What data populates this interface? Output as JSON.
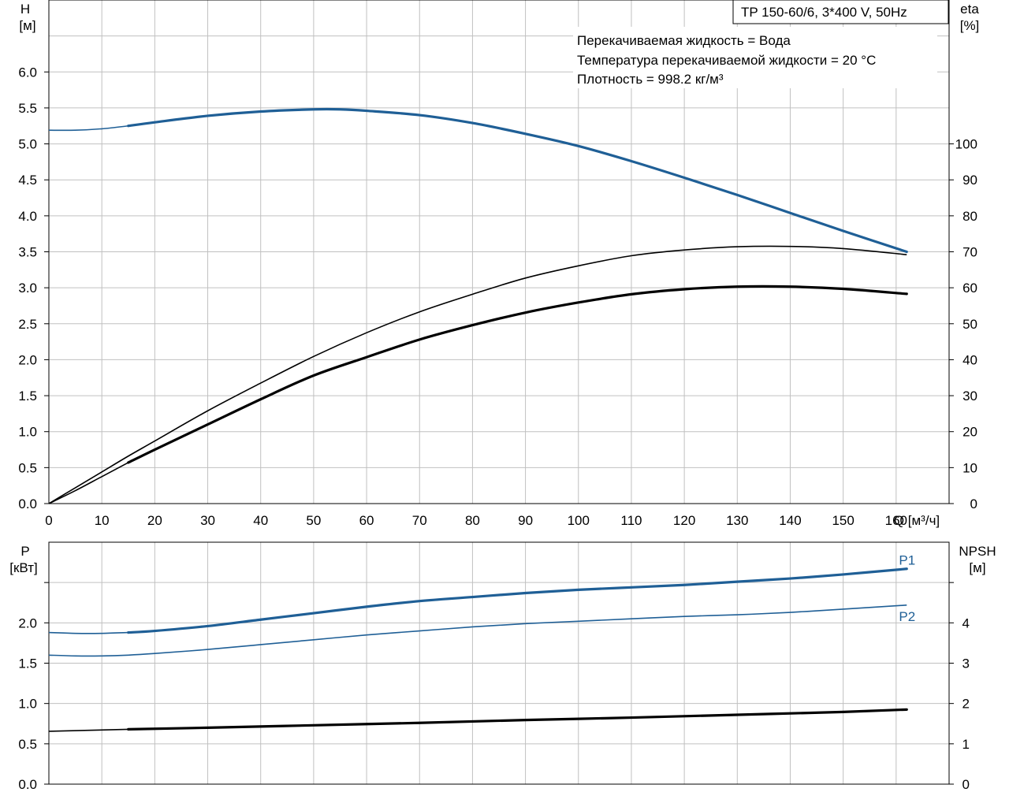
{
  "colors": {
    "blue": "#1f5f96",
    "black": "#000000",
    "grid": "#c0c0c0"
  },
  "title_box": "TP 150-60/6, 3*400 V, 50Hz",
  "info_lines": [
    "Перекачиваемая жидкость = Вода",
    "Температура перекачиваемой жидкости = 20 °C",
    "Плотность = 998.2 кг/м³"
  ],
  "axes": {
    "top_left_label": [
      "H",
      "[м]"
    ],
    "top_right_label": [
      "eta",
      "[%]"
    ],
    "x_label": "Q [м³/ч]",
    "bottom_left_label": [
      "P",
      "[кВт]"
    ],
    "bottom_right_label": [
      "NPSH",
      "[м]"
    ]
  },
  "chart_data": [
    {
      "type": "line",
      "panel": "top",
      "xlim": [
        0,
        170
      ],
      "ylim_left": [
        0,
        7
      ],
      "ylim_right_eta": [
        0,
        140
      ],
      "x_ticks": [
        0,
        10,
        20,
        30,
        40,
        50,
        60,
        70,
        80,
        90,
        100,
        110,
        120,
        130,
        140,
        150,
        160
      ],
      "y_ticks_left": [
        "0.0",
        "0.5",
        "1.0",
        "1.5",
        "2.0",
        "2.5",
        "3.0",
        "3.5",
        "4.0",
        "4.5",
        "5.0",
        "5.5",
        "6.0"
      ],
      "y_ticks_right": [
        "0",
        "10",
        "20",
        "30",
        "40",
        "50",
        "60",
        "70",
        "80",
        "90",
        "100"
      ],
      "series": [
        {
          "name": "H",
          "axis": "left",
          "color": "#1f5f96",
          "thin_until": 15,
          "x": [
            0,
            5,
            10,
            15,
            20,
            30,
            40,
            50,
            55,
            60,
            70,
            80,
            90,
            100,
            110,
            120,
            130,
            140,
            150,
            162
          ],
          "y": [
            5.19,
            5.19,
            5.21,
            5.25,
            5.3,
            5.39,
            5.45,
            5.48,
            5.48,
            5.46,
            5.4,
            5.29,
            5.14,
            4.97,
            4.76,
            4.53,
            4.29,
            4.04,
            3.79,
            3.5
          ]
        },
        {
          "name": "eta",
          "axis": "right",
          "color": "#000000",
          "thin_until": 15,
          "x": [
            0,
            5,
            10,
            15,
            20,
            30,
            40,
            50,
            60,
            70,
            80,
            90,
            100,
            110,
            120,
            130,
            140,
            150,
            162
          ],
          "y": [
            0,
            3.6,
            7.5,
            11.4,
            15,
            22,
            29,
            35.6,
            40.7,
            45.6,
            49.6,
            53.1,
            55.9,
            58.2,
            59.6,
            60.3,
            60.3,
            59.7,
            58.3
          ]
        },
        {
          "name": "eta-total",
          "axis": "right",
          "color": "#000000",
          "thin_until": 162,
          "x": [
            0,
            5,
            10,
            15,
            20,
            30,
            40,
            50,
            60,
            70,
            80,
            90,
            100,
            110,
            120,
            130,
            140,
            150,
            162
          ],
          "y": [
            0,
            4.4,
            8.8,
            13.2,
            17.4,
            25.8,
            33.5,
            40.9,
            47.5,
            53.3,
            58.2,
            62.7,
            66.1,
            68.9,
            70.5,
            71.4,
            71.5,
            70.9,
            69.2
          ]
        }
      ]
    },
    {
      "type": "line",
      "panel": "bottom",
      "xlim": [
        0,
        170
      ],
      "ylim_left": [
        0,
        3.0
      ],
      "ylim_right_npsh": [
        0,
        6
      ],
      "y_ticks_left": [
        "0.0",
        "0.5",
        "1.0",
        "1.5",
        "2.0"
      ],
      "y_ticks_right": [
        "0",
        "1",
        "2",
        "3",
        "4"
      ],
      "series": [
        {
          "name": "P1",
          "axis": "left",
          "color": "#1f5f96",
          "thin_until": 15,
          "x": [
            0,
            5,
            10,
            15,
            20,
            30,
            40,
            50,
            60,
            70,
            80,
            90,
            100,
            110,
            120,
            130,
            140,
            150,
            162
          ],
          "y": [
            1.88,
            1.87,
            1.87,
            1.88,
            1.9,
            1.96,
            2.04,
            2.12,
            2.2,
            2.27,
            2.32,
            2.37,
            2.41,
            2.44,
            2.47,
            2.51,
            2.55,
            2.6,
            2.67
          ]
        },
        {
          "name": "P2",
          "axis": "left",
          "color": "#1f5f96",
          "thin_until": 162,
          "x": [
            0,
            5,
            10,
            15,
            20,
            30,
            40,
            50,
            60,
            70,
            80,
            90,
            100,
            110,
            120,
            130,
            140,
            150,
            162
          ],
          "y": [
            1.6,
            1.59,
            1.59,
            1.6,
            1.62,
            1.67,
            1.73,
            1.79,
            1.85,
            1.9,
            1.95,
            1.99,
            2.02,
            2.05,
            2.08,
            2.1,
            2.13,
            2.17,
            2.22
          ]
        },
        {
          "name": "NPSH",
          "axis": "right",
          "color": "#000000",
          "thin_until": 15,
          "x": [
            0,
            15,
            30,
            50,
            70,
            90,
            110,
            130,
            150,
            162
          ],
          "y": [
            1.31,
            1.36,
            1.4,
            1.46,
            1.52,
            1.59,
            1.65,
            1.72,
            1.79,
            1.85
          ]
        }
      ],
      "series_labels": [
        {
          "text": "P1",
          "x": 160,
          "y": 2.78,
          "axis": "left"
        },
        {
          "text": "P2",
          "x": 160,
          "y": 2.08,
          "axis": "left"
        }
      ]
    }
  ]
}
